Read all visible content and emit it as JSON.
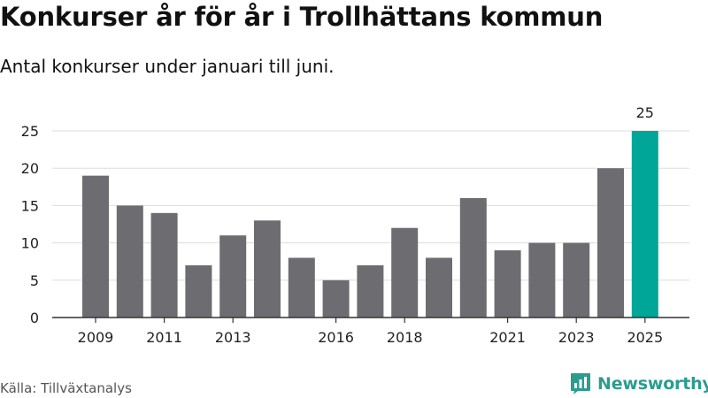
{
  "title": "Konkurser år för år i Trollhättans kommun",
  "subtitle": "Antal konkurser under januari till juni.",
  "source": "Källa: Tillväxtanalys",
  "brand": "Newsworthy",
  "colors": {
    "bar": "#6d6c71",
    "highlight": "#00a697",
    "grid": "#dddddd",
    "axis": "#333333",
    "brand": "#2a9d8f"
  },
  "chart_data": {
    "type": "bar",
    "title": "Konkurser år för år i Trollhättans kommun",
    "subtitle": "Antal konkurser under januari till juni.",
    "xlabel": "",
    "ylabel": "",
    "categories": [
      "2009",
      "2010",
      "2011",
      "2012",
      "2013",
      "2014",
      "2015",
      "2016",
      "2017",
      "2018",
      "2019",
      "2020",
      "2021",
      "2022",
      "2023",
      "2024",
      "2025"
    ],
    "values": [
      19,
      15,
      14,
      7,
      11,
      13,
      8,
      5,
      7,
      12,
      8,
      16,
      9,
      10,
      10,
      20,
      25
    ],
    "x_tick_labels": [
      "2009",
      "2011",
      "2013",
      "2016",
      "2018",
      "2021",
      "2023",
      "2025"
    ],
    "y_ticks": [
      0,
      5,
      10,
      15,
      20,
      25
    ],
    "ylim": [
      0,
      25
    ],
    "highlight_category": "2025",
    "data_labels": [
      {
        "category": "2025",
        "text": "25"
      }
    ],
    "grid": true,
    "legend": "none"
  }
}
